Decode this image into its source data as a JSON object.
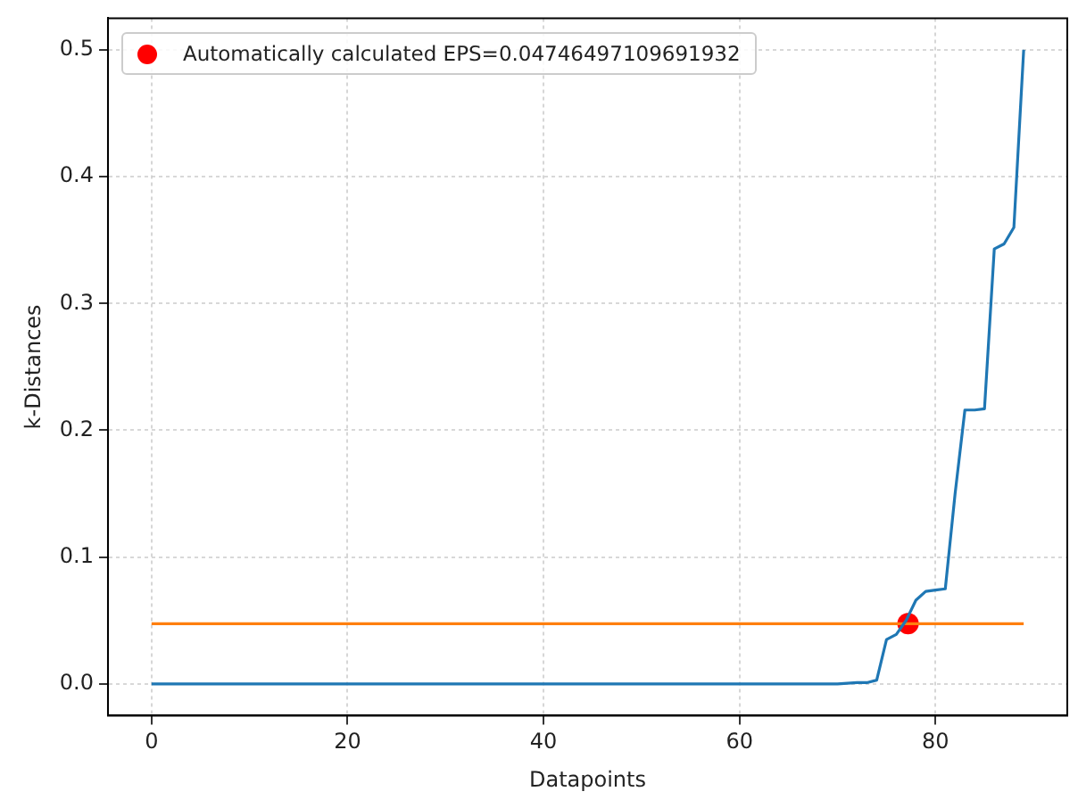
{
  "chart_data": {
    "type": "line",
    "xlabel": "Datapoints",
    "ylabel": "k-Distances",
    "xlim": [
      -4.45,
      93.45
    ],
    "xticks": [
      0,
      20,
      40,
      60,
      80
    ],
    "ylim": [
      -0.025,
      0.525
    ],
    "yticks": [
      {
        "value": 0,
        "label": "0.0"
      },
      {
        "value": 0.1,
        "label": "0.1"
      },
      {
        "value": 0.2,
        "label": "0.2"
      },
      {
        "value": 0.3,
        "label": "0.3"
      },
      {
        "value": 0.4,
        "label": "0.4"
      },
      {
        "value": 0.5,
        "label": "0.5"
      }
    ],
    "grid": true,
    "legend": "top left",
    "series": [
      {
        "color": "#1f77b4",
        "marker": "none",
        "x": [
          0,
          70,
          72,
          73,
          74,
          75,
          76,
          77,
          78,
          79,
          80,
          81,
          82,
          83,
          84,
          85,
          86,
          87,
          88,
          89
        ],
        "values": [
          0,
          0,
          0.001,
          0.001,
          0.003,
          0.035,
          0.039,
          0.05,
          0.066,
          0.073,
          0.074,
          0.075,
          0.15,
          0.216,
          0.216,
          0.217,
          0.343,
          0.347,
          0.36,
          0.5
        ]
      },
      {
        "type": "line",
        "color": "#ff7f0e",
        "marker": "none",
        "x": [
          0,
          89
        ],
        "values": [
          0.0475,
          0.0475
        ]
      },
      {
        "type": "scatter",
        "name": "Automatically calculated EPS=0.04746497109691932",
        "color": "#ff0000",
        "marker": "circle",
        "x": [
          77.2
        ],
        "values": [
          0.0475
        ]
      }
    ]
  }
}
